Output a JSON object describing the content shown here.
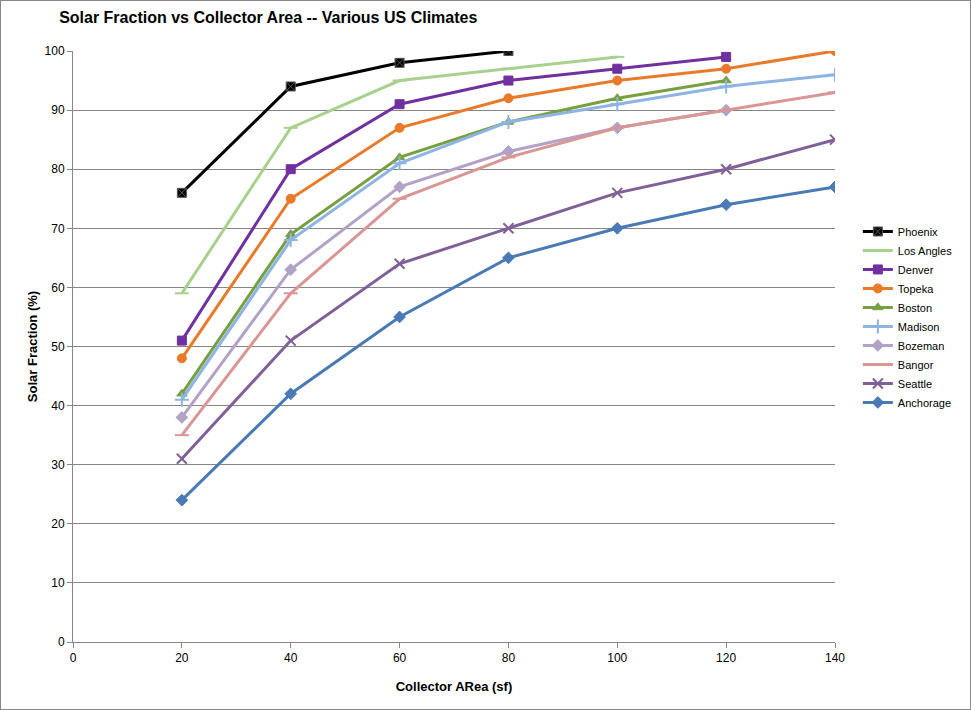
{
  "chart_data": {
    "type": "line",
    "title": "Solar Fraction vs Collector Area -- Various US Climates",
    "x_label": "Collector ARea (sf)",
    "y_label": "Solar Fraction (%)",
    "xlim": [
      0,
      140
    ],
    "xticks": [
      0,
      20,
      40,
      60,
      80,
      100,
      120,
      140
    ],
    "ylim": [
      0,
      100
    ],
    "yticks": [
      0,
      10,
      20,
      30,
      40,
      50,
      60,
      70,
      80,
      90,
      100
    ],
    "grid": true,
    "legend": "right",
    "x": [
      20,
      40,
      60,
      80,
      100,
      120,
      140
    ],
    "series": [
      {
        "name": "Phoenix",
        "color": "#000000",
        "marker": "square-x",
        "values": [
          76,
          94,
          98,
          100,
          null,
          null,
          null
        ]
      },
      {
        "name": "Los Angles",
        "color": "#a9d18e",
        "marker": "line-ew",
        "values": [
          59,
          87,
          95,
          97,
          99,
          null,
          null
        ]
      },
      {
        "name": "Denver",
        "color": "#7030a0",
        "marker": "square",
        "values": [
          51,
          80,
          91,
          95,
          97,
          99,
          null
        ]
      },
      {
        "name": "Topeka",
        "color": "#e97a2a",
        "marker": "circle",
        "values": [
          48,
          75,
          87,
          92,
          95,
          97,
          100
        ]
      },
      {
        "name": "Boston",
        "color": "#77a040",
        "marker": "triangle-up",
        "values": [
          42,
          69,
          82,
          88,
          92,
          95,
          null
        ]
      },
      {
        "name": "Madison",
        "color": "#8eb4e3",
        "marker": "cross-thin",
        "values": [
          41,
          68,
          81,
          88,
          91,
          94,
          96
        ]
      },
      {
        "name": "Bozeman",
        "color": "#b3a2c7",
        "marker": "diamond",
        "values": [
          38,
          63,
          77,
          83,
          87,
          90,
          null
        ]
      },
      {
        "name": "Bangor",
        "color": "#d99694",
        "marker": "line-ew",
        "values": [
          35,
          59,
          75,
          82,
          87,
          90,
          93
        ]
      },
      {
        "name": "Seattle",
        "color": "#7f6198",
        "marker": "x-thin",
        "values": [
          31,
          51,
          64,
          70,
          76,
          80,
          85
        ]
      },
      {
        "name": "Anchorage",
        "color": "#4a7ab5",
        "marker": "diamond",
        "values": [
          24,
          42,
          55,
          65,
          70,
          74,
          77
        ]
      }
    ]
  }
}
